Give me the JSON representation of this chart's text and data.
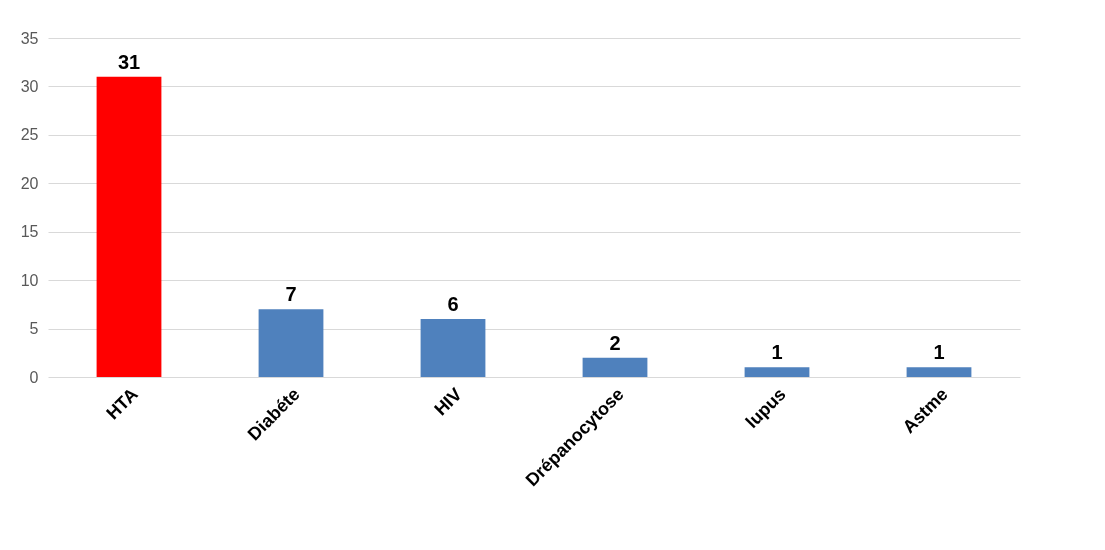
{
  "chart_data": {
    "type": "bar",
    "categories": [
      "HTA",
      "Diabéte",
      "HIV",
      "Drépanocytose",
      "lupus",
      "Astme"
    ],
    "values": [
      31,
      7,
      6,
      2,
      1,
      1
    ],
    "colors": [
      "#ff0000",
      "#4f81bd",
      "#4f81bd",
      "#4f81bd",
      "#4f81bd",
      "#4f81bd"
    ],
    "ylim": [
      0,
      35
    ],
    "yticks": [
      0,
      5,
      10,
      15,
      20,
      25,
      30,
      35
    ],
    "grid": "y",
    "data_labels": true
  }
}
